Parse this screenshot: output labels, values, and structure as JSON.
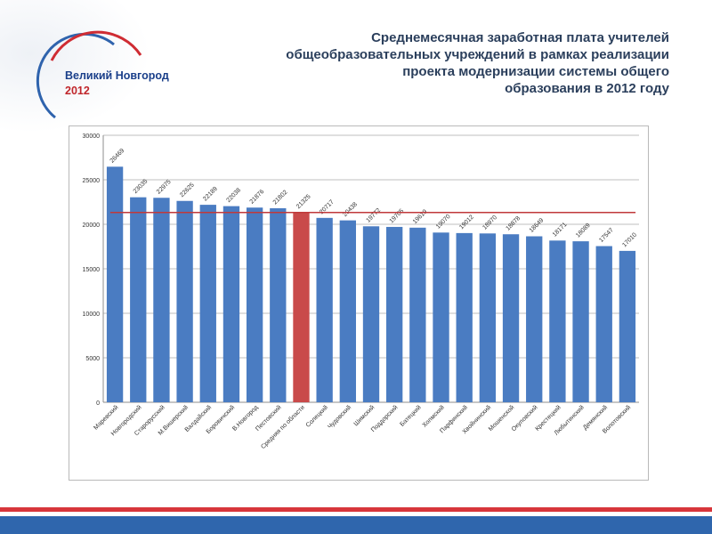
{
  "header": {
    "city": "Великий Новгород",
    "year": "2012",
    "title_lines": [
      "Среднемесячная заработная  плата учителей",
      "общеобразовательных учреждений в рамках реализации",
      "проекта модернизации системы общего",
      "образования в 2012 году"
    ]
  },
  "colors": {
    "bar": "#4a7cc2",
    "highlight_bar": "#c94a4a",
    "average_line": "#c0393b",
    "title": "#2b3f5c",
    "city": "#1a3f8a",
    "year": "#c0262b"
  },
  "chart_data": {
    "type": "bar",
    "title": "",
    "xlabel": "",
    "ylabel": "",
    "ylim": [
      0,
      30000
    ],
    "yticks": [
      0,
      5000,
      10000,
      15000,
      20000,
      25000,
      30000
    ],
    "grid": true,
    "categories": [
      "Маревский",
      "Новгородский",
      "Старорусский",
      "М.Вишерский",
      "Валдайский",
      "Боровичский",
      "В.Новгород",
      "Пестовский",
      "Средняя по области",
      "Солецкий",
      "Чудовский",
      "Шимский",
      "Поддорский",
      "Батецкий",
      "Холмский",
      "Парфинский",
      "Хвойнинский",
      "Мошенской",
      "Окуловский",
      "Крестецкий",
      "Любытинский",
      "Демянский",
      "Волотовский"
    ],
    "values": [
      26469,
      23035,
      22975,
      22625,
      22189,
      22038,
      21876,
      21802,
      21325,
      20717,
      20438,
      19772,
      19705,
      19619,
      19070,
      19012,
      18970,
      18878,
      18649,
      18171,
      18089,
      17547,
      17010
    ],
    "highlight_index": 8,
    "reference_line": 21325
  }
}
